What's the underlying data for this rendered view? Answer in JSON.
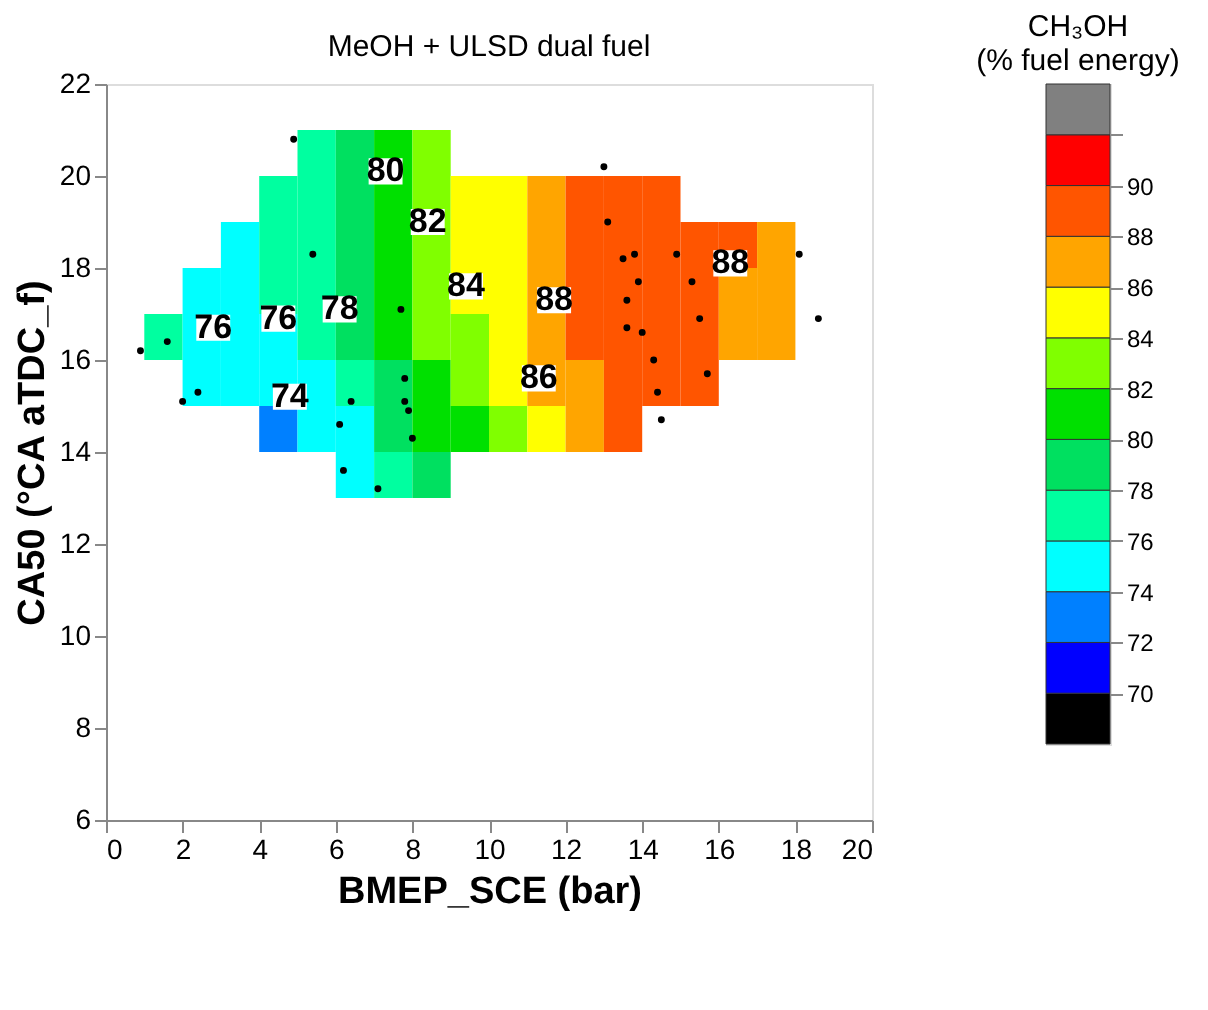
{
  "chart_data": {
    "type": "heatmap",
    "title": "MeOH + ULSD dual fuel",
    "xlabel": "BMEP_SCE (bar)",
    "ylabel": "CA50 (°CA aTDC_f)",
    "clabel": "CH₃OH (% fuel energy)",
    "x": [
      1.5,
      2.5,
      3.5,
      4.5,
      5.5,
      6.5,
      7.5,
      8.5,
      9.5,
      10.5,
      11.5,
      12.5,
      13.5,
      14.5,
      15.5,
      16.5,
      17.5,
      18.5
    ],
    "y": [
      20.5,
      19.5,
      18.5,
      17.5,
      16.5,
      15.5,
      14.5,
      13.5
    ],
    "cells": [
      [
        null,
        null,
        null,
        null,
        77,
        79,
        81,
        83,
        null,
        null,
        null,
        null,
        null,
        null,
        null,
        null,
        null,
        null
      ],
      [
        null,
        null,
        null,
        77,
        77,
        79,
        81,
        83,
        85,
        85,
        87,
        89,
        89,
        89,
        null,
        null,
        null,
        null
      ],
      [
        null,
        null,
        75,
        77,
        77,
        79,
        81,
        83,
        85,
        85,
        87,
        89,
        89,
        89,
        89,
        89,
        87,
        null
      ],
      [
        null,
        75,
        75,
        77,
        77,
        79,
        81,
        83,
        85,
        85,
        87,
        89,
        89,
        89,
        89,
        87,
        87,
        null
      ],
      [
        77,
        75,
        75,
        75,
        77,
        79,
        81,
        83,
        83,
        85,
        87,
        89,
        89,
        89,
        89,
        87,
        87,
        null
      ],
      [
        null,
        75,
        75,
        75,
        75,
        77,
        79,
        81,
        83,
        85,
        87,
        87,
        89,
        89,
        89,
        null,
        null,
        null
      ],
      [
        null,
        null,
        null,
        73,
        75,
        75,
        79,
        81,
        81,
        83,
        85,
        87,
        89,
        null,
        null,
        null,
        null,
        null
      ],
      [
        null,
        null,
        null,
        null,
        null,
        75,
        77,
        79,
        null,
        null,
        null,
        null,
        null,
        null,
        null,
        null,
        null,
        null
      ]
    ],
    "clim": [
      68,
      94
    ],
    "cticks": [
      70,
      72,
      74,
      76,
      78,
      80,
      82,
      84,
      86,
      88,
      90,
      {
        "value": 92,
        "label": null
      }
    ],
    "colors": [
      "#000000",
      "#0000ff",
      "#0080ff",
      "#00ffff",
      "#00ffa0",
      "#00e060",
      "#00e000",
      "#80ff00",
      "#ffff00",
      "#ffa500",
      "#ff5500",
      "#ff0000",
      "#808080"
    ],
    "series": [
      {
        "type": "scatter",
        "color": "#000000",
        "marker": "circle",
        "x": [
          4.9,
          13.0,
          18.1,
          18.6,
          14.5,
          7.1,
          2.0,
          0.9,
          1.6,
          2.4,
          5.4,
          7.7,
          7.8,
          7.8,
          7.9,
          8.0,
          6.4,
          6.1,
          6.2,
          13.1,
          13.5,
          13.8,
          14.9,
          13.9,
          15.3,
          13.6,
          13.6,
          14.0,
          15.5,
          14.3,
          15.7,
          14.4
        ],
        "values": [
          20.8,
          20.2,
          18.3,
          16.9,
          14.7,
          13.2,
          15.1,
          16.2,
          16.4,
          15.3,
          18.3,
          17.1,
          15.6,
          15.1,
          14.9,
          14.3,
          15.1,
          14.6,
          13.6,
          19.0,
          18.2,
          18.3,
          18.3,
          17.7,
          17.7,
          17.3,
          16.7,
          16.6,
          16.9,
          16.0,
          15.7,
          15.3
        ]
      }
    ],
    "annotations": [
      "80",
      "82",
      "84",
      "88",
      "86",
      "88",
      "76",
      "76",
      "78",
      "74"
    ],
    "xlim": [
      0,
      20
    ],
    "xticks": [
      0,
      2,
      4,
      6,
      8,
      10,
      12,
      14,
      16,
      18,
      20
    ],
    "ylim": [
      6,
      22
    ],
    "yticks": [
      6,
      8,
      10,
      12,
      14,
      16,
      18,
      20,
      22
    ],
    "grid": false
  }
}
